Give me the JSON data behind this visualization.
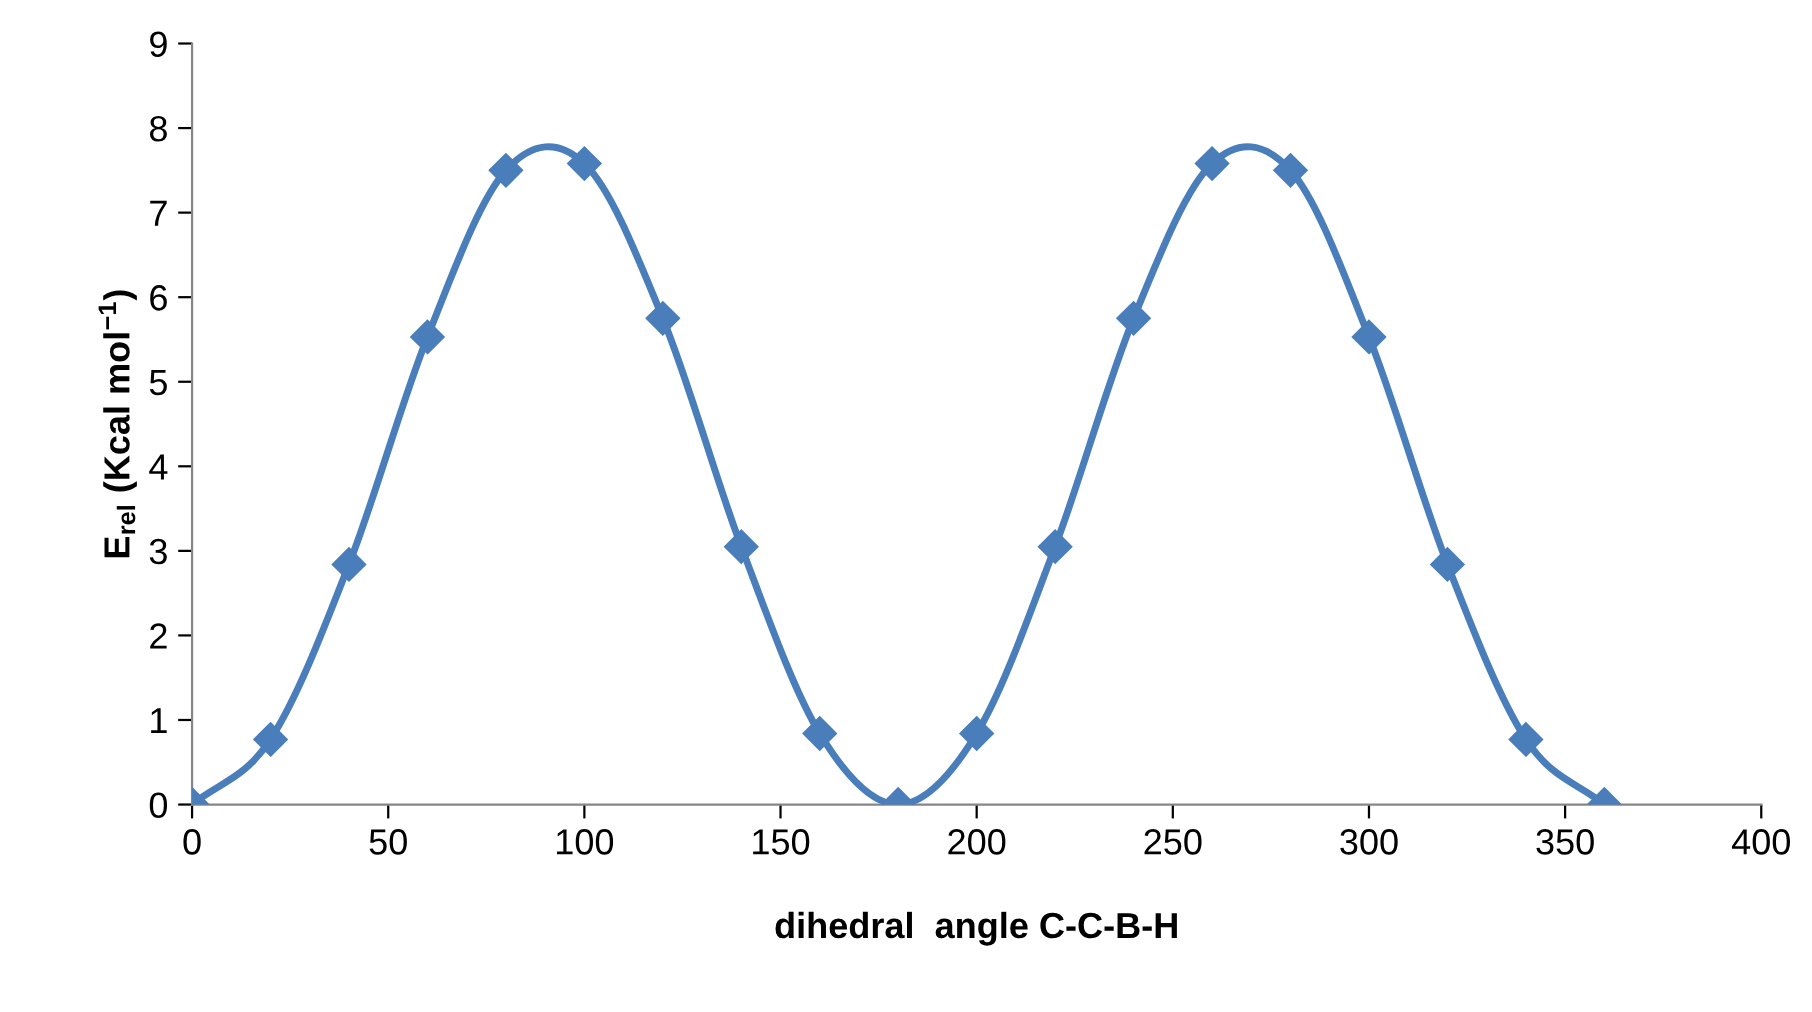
{
  "chart_data": {
    "type": "line",
    "xlabel": "dihedral  angle C-C-B-H",
    "ylabel": "E$_{rel}$ (Kcal mol$^{−1}$)",
    "x": [
      0,
      20,
      40,
      60,
      80,
      100,
      120,
      140,
      160,
      180,
      200,
      220,
      240,
      260,
      280,
      300,
      320,
      340,
      360
    ],
    "series": [
      {
        "color": "#4a7ebb",
        "values": [
          0,
          0.77,
          2.84,
          5.53,
          7.5,
          7.58,
          5.75,
          3.05,
          0.84,
          0,
          0.84,
          3.05,
          5.75,
          7.58,
          7.5,
          5.53,
          2.84,
          0.77,
          0
        ]
      }
    ],
    "xlim": [
      0,
      400
    ],
    "xticks": [
      0,
      50,
      100,
      150,
      200,
      250,
      300,
      350,
      400
    ],
    "ylim": [
      0,
      9
    ],
    "yticks": [
      0,
      1,
      2,
      3,
      4,
      5,
      6,
      7,
      8,
      9
    ],
    "grid": false,
    "legend": false,
    "marker": "diamond",
    "line_style": "solid"
  }
}
